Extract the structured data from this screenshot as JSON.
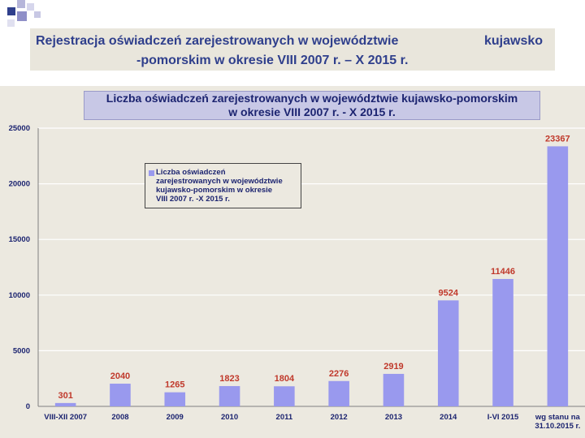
{
  "slide": {
    "title_line1": "Rejestracja oświadczeń zarejestrowanych w województwie",
    "title_line2": "-pomorskim  w okresie VIII 2007 r. – X 2015 r.",
    "title_right": "kujawsko"
  },
  "colors": {
    "bar": "#9999ee",
    "data_label": "#c0392b",
    "title_text": "#2f3f8c",
    "chart_bg": "#ece9e0",
    "grid": "#ffffff"
  },
  "chart_data": {
    "type": "bar",
    "title_line1": "Liczba oświadczeń zarejestrowanych w województwie kujawsko-pomorskim",
    "title_line2": "w okresie VIII 2007 r. - X 2015 r.",
    "categories": [
      "VIII-XII 2007",
      "2008",
      "2009",
      "2010",
      "2011",
      "2012",
      "2013",
      "2014",
      "I-VI 2015",
      "wg stanu na 31.10.2015 r."
    ],
    "category_lines": [
      [
        "VIII-XII 2007"
      ],
      [
        "2008"
      ],
      [
        "2009"
      ],
      [
        "2010"
      ],
      [
        "2011"
      ],
      [
        "2012"
      ],
      [
        "2013"
      ],
      [
        "2014"
      ],
      [
        "I-VI 2015"
      ],
      [
        "wg stanu na",
        "31.10.2015 r."
      ]
    ],
    "series": [
      {
        "name": "Liczba oświadczeń zarejestrowanych w województwie kujawsko-pomorskim w okresie VIII 2007 r. -X 2015 r.",
        "values": [
          301,
          2040,
          1265,
          1823,
          1804,
          2276,
          2919,
          9524,
          11446,
          23367
        ]
      }
    ],
    "ylim": [
      0,
      25000
    ],
    "yticks": [
      0,
      5000,
      10000,
      15000,
      20000,
      25000
    ],
    "grid": true,
    "legend_position": "top-left",
    "legend_lines": [
      "Liczba oświadczeń",
      "zarejestrowanych w województwie",
      "kujawsko-pomorskim w okresie",
      "VIII 2007 r. -X 2015 r."
    ]
  }
}
